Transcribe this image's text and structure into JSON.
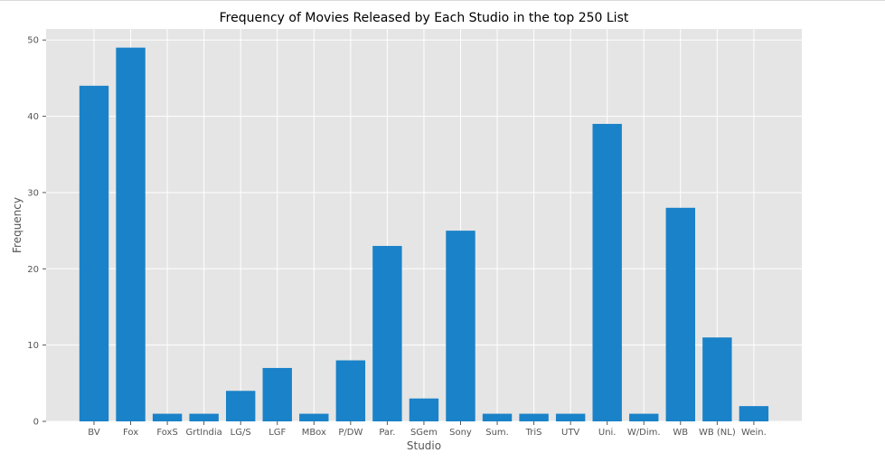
{
  "chart_data": {
    "type": "bar",
    "title": "Frequency of Movies Released by Each Studio in the top 250 List",
    "xlabel": "Studio",
    "ylabel": "Frequency",
    "categories": [
      "BV",
      "Fox",
      "FoxS",
      "GrtIndia",
      "LG/S",
      "LGF",
      "MBox",
      "P/DW",
      "Par.",
      "SGem",
      "Sony",
      "Sum.",
      "TriS",
      "UTV",
      "Uni.",
      "W/Dim.",
      "WB",
      "WB (NL)",
      "Wein."
    ],
    "values": [
      44,
      49,
      1,
      1,
      4,
      7,
      1,
      8,
      23,
      3,
      25,
      1,
      1,
      1,
      39,
      1,
      28,
      11,
      2
    ],
    "ylim": [
      0,
      51.45
    ],
    "yticks": [
      0,
      10,
      20,
      30,
      40,
      50
    ],
    "grid": true,
    "bar_color": "#1a82c8",
    "plot_background": "#e5e5e5",
    "grid_color": "#ffffff"
  }
}
